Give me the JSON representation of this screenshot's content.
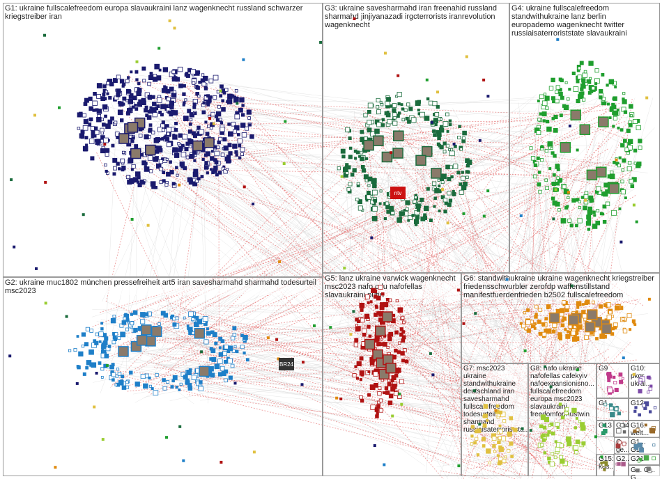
{
  "groups": [
    {
      "id": "G1",
      "label": "G1: ukraine fullscalefreedom europa slavaukraini lanz wagenknecht russland schwarzer kriegstreiber iran",
      "color": "#1a1a6e"
    },
    {
      "id": "G2",
      "label": "G2: ukraine muc1802 münchen pressefreiheit art5 iran savesharmahd sharmahd todesurteil msc2023",
      "color": "#1e7fc8"
    },
    {
      "id": "G3",
      "label": "G3: ukraine savesharmahd iran freenahid russland sharmahd jinjiyanazadi irgcterrorists iranrevolution wagenknecht",
      "color": "#1a6b3c"
    },
    {
      "id": "G4",
      "label": "G4: ukraine fullscalefreedom standwithukraine lanz berlin europademo wagenknecht twitter russiaisaterroriststate slavaukraini",
      "color": "#1f9e2e"
    },
    {
      "id": "G5",
      "label": "G5: lanz ukraine varwick wagenknecht msc2023 nafo cdu nafofellas slavaukraini putin",
      "color": "#b01212"
    },
    {
      "id": "G6",
      "label": "G6: standwithukraine ukraine wagenknecht kriegstreiber friedensschwurbler zerofdp waffenstillstand manifestfuerdenfrieden b2502 fullscalefreedom",
      "color": "#e08a0e"
    },
    {
      "id": "G7",
      "label": "G7: msc2023 ukraine standwithukraine deutschland iran savesharmahd fullscalefreedom todesurteil sharmahd russiaisaterroriststa...",
      "color": "#e0c040"
    },
    {
      "id": "G8",
      "label": "G8: nafo ukraine nafofellas cafekyiv nafoexpansionisno... fullscalefreedom europa msc2023 slavaukraini freedomformustwin",
      "color": "#9acd32"
    },
    {
      "id": "G9",
      "label": "G9",
      "color": "#c03a8a"
    },
    {
      "id": "G10",
      "label": "G10: pkgr ukrai...",
      "color": "#7d4aa8"
    },
    {
      "id": "G11",
      "label": "G1...",
      "color": "#3a8a8a"
    },
    {
      "id": "G12",
      "label": "G12:",
      "color": "#4a4a9a"
    },
    {
      "id": "G13",
      "label": "G13",
      "color": "#2a9a6a"
    },
    {
      "id": "G14",
      "label": "G14",
      "color": "#6a6a6a"
    },
    {
      "id": "G16",
      "label": "G16: welt...",
      "color": "#9a6a2a"
    },
    {
      "id": "G17",
      "label": "G... ge...",
      "color": "#aa3a3a"
    },
    {
      "id": "G18",
      "label": "G1... G18",
      "color": "#5a8aaa"
    },
    {
      "id": "G15",
      "label": "G15: kas...",
      "color": "#8a8a2a"
    },
    {
      "id": "G20",
      "label": "G2...",
      "color": "#aa5a8a"
    },
    {
      "id": "G21",
      "label": "G21",
      "color": "#4aaa4a"
    },
    {
      "id": "G22",
      "label": "G... G... G...",
      "color": "#777777"
    }
  ],
  "colors": {
    "edge_gray": "#c8c8c8",
    "edge_red": "#e05050",
    "box_border": "#9a9a9a"
  },
  "node_badges": [
    {
      "id": "ntv",
      "text": "ntv",
      "group": "G3"
    },
    {
      "id": "br24",
      "text": "BR24",
      "group": "G2"
    }
  ]
}
